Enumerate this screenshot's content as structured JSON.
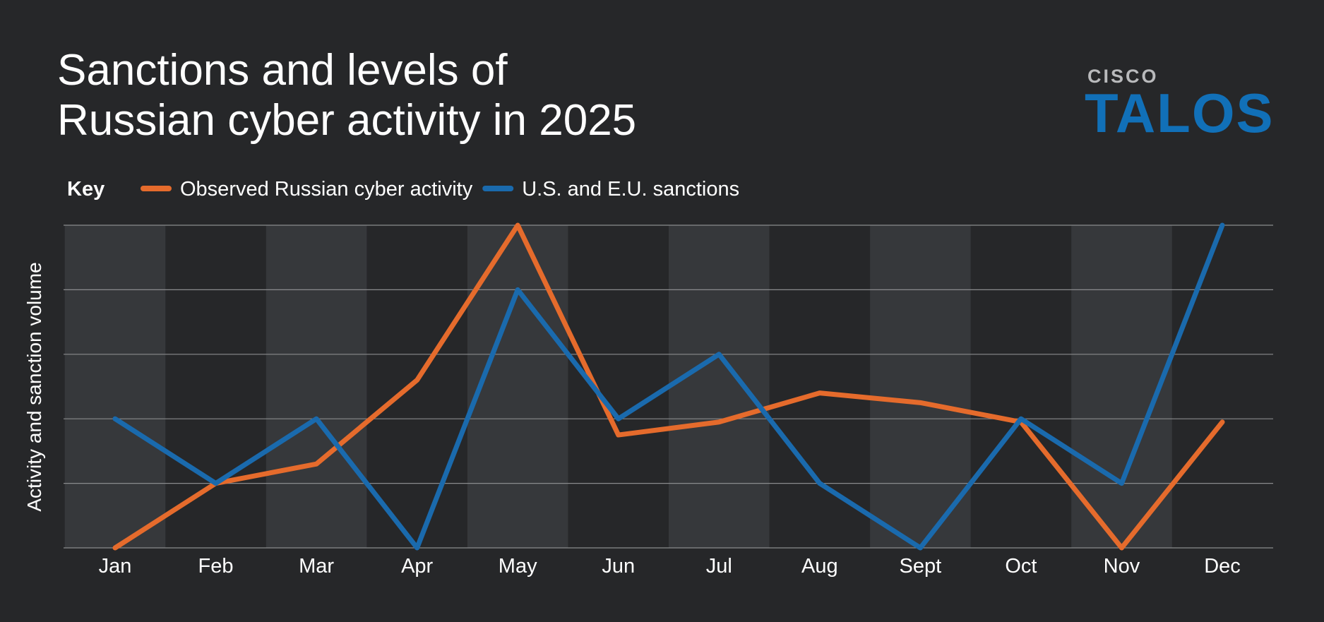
{
  "chart_data": {
    "type": "line",
    "title": [
      "Sanctions and levels of",
      "Russian cyber activity in 2025"
    ],
    "logo": {
      "brand": "CISCO",
      "product": "TALOS"
    },
    "legend_title": "Key",
    "y_label": "Activity and sanction volume",
    "categories": [
      "Jan",
      "Feb",
      "Mar",
      "Apr",
      "May",
      "Jun",
      "Jul",
      "Aug",
      "Sept",
      "Oct",
      "Nov",
      "Dec"
    ],
    "series": [
      {
        "name": "Observed Russian cyber activity",
        "color": "#e56b2c",
        "values": [
          0,
          1,
          1.3,
          2.6,
          5,
          1.75,
          1.95,
          2.4,
          2.25,
          1.95,
          0,
          1.95
        ]
      },
      {
        "name": "U.S. and E.U. sanctions",
        "color": "#1a6aad",
        "values": [
          2,
          1,
          2,
          0,
          4,
          2,
          3,
          1,
          0,
          2,
          1,
          5
        ]
      }
    ],
    "ylim": [
      0,
      5
    ],
    "yticks": [
      0,
      1,
      2,
      3,
      4,
      5
    ],
    "grid": true
  }
}
